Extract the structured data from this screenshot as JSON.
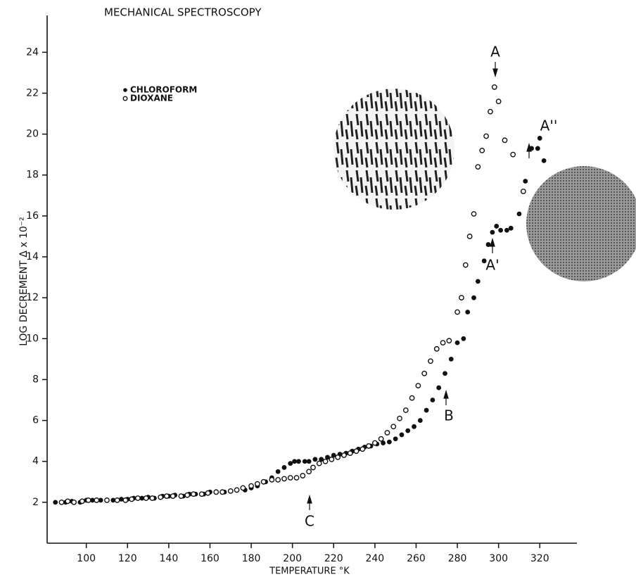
{
  "chart_data": {
    "type": "scatter",
    "title": "MECHANICAL SPECTROSCOPY",
    "xlabel": "TEMPERATURE °K",
    "ylabel": "LOG DECREMENT Δ x 10⁻²",
    "xlim": [
      81,
      338
    ],
    "ylim": [
      0,
      25.8
    ],
    "xticks": [
      100,
      120,
      140,
      160,
      180,
      200,
      220,
      240,
      260,
      280,
      300,
      320
    ],
    "yticks": [
      2,
      4,
      6,
      8,
      10,
      12,
      14,
      16,
      18,
      20,
      22,
      24
    ],
    "grid": false,
    "legend": "upper-left",
    "series": [
      {
        "name": "CHLOROFORM",
        "color": "#111111",
        "marker": "filled",
        "x": [
          85,
          90,
          93,
          97,
          100,
          103,
          107,
          110,
          113,
          117,
          120,
          123,
          127,
          130,
          133,
          137,
          140,
          143,
          147,
          150,
          153,
          157,
          160,
          163,
          167,
          170,
          173,
          177,
          180,
          183,
          187,
          190,
          193,
          196,
          199,
          201,
          203,
          206,
          208,
          211,
          214,
          217,
          220,
          223,
          226,
          229,
          232,
          235,
          238,
          241,
          244,
          247,
          250,
          253,
          256,
          259,
          262,
          265,
          268,
          271,
          274,
          277,
          280,
          283,
          285,
          288,
          290,
          293,
          295,
          297,
          299,
          301,
          304,
          306,
          310,
          313,
          316,
          319,
          320,
          322
        ],
        "values": [
          2.0,
          2.0,
          2.05,
          2.0,
          2.1,
          2.1,
          2.1,
          2.1,
          2.1,
          2.15,
          2.15,
          2.2,
          2.2,
          2.25,
          2.2,
          2.3,
          2.3,
          2.35,
          2.3,
          2.4,
          2.4,
          2.4,
          2.5,
          2.5,
          2.5,
          2.55,
          2.6,
          2.6,
          2.7,
          2.8,
          3.0,
          3.2,
          3.5,
          3.7,
          3.9,
          4.0,
          4.0,
          4.0,
          4.0,
          4.1,
          4.1,
          4.2,
          4.3,
          4.35,
          4.4,
          4.5,
          4.6,
          4.7,
          4.75,
          4.85,
          4.9,
          4.95,
          5.1,
          5.3,
          5.5,
          5.7,
          6.0,
          6.5,
          7.0,
          7.6,
          8.3,
          9.0,
          9.8,
          10.0,
          11.3,
          12.0,
          12.8,
          13.8,
          14.6,
          15.2,
          15.5,
          15.3,
          15.3,
          15.4,
          16.1,
          17.7,
          19.3,
          19.3,
          19.8,
          18.7
        ]
      },
      {
        "name": "DIOXANE",
        "color": "#111111",
        "marker": "open",
        "x": [
          88,
          91,
          94,
          98,
          101,
          105,
          110,
          115,
          119,
          122,
          125,
          129,
          132,
          136,
          139,
          142,
          146,
          149,
          152,
          156,
          159,
          163,
          166,
          170,
          173,
          176,
          180,
          183,
          186,
          190,
          193,
          196,
          199,
          202,
          205,
          208,
          210,
          213,
          216,
          219,
          222,
          225,
          228,
          231,
          234,
          237,
          240,
          243,
          246,
          249,
          252,
          255,
          258,
          261,
          264,
          267,
          270,
          273,
          276,
          280,
          282,
          284,
          286,
          288,
          290,
          292,
          294,
          296,
          298,
          300,
          303,
          307,
          312
        ],
        "values": [
          2.0,
          2.05,
          2.0,
          2.05,
          2.1,
          2.1,
          2.1,
          2.1,
          2.1,
          2.15,
          2.2,
          2.2,
          2.2,
          2.25,
          2.3,
          2.3,
          2.3,
          2.35,
          2.4,
          2.4,
          2.45,
          2.5,
          2.5,
          2.55,
          2.6,
          2.7,
          2.8,
          2.9,
          3.0,
          3.1,
          3.1,
          3.15,
          3.2,
          3.2,
          3.3,
          3.5,
          3.7,
          3.9,
          4.0,
          4.1,
          4.2,
          4.3,
          4.4,
          4.5,
          4.6,
          4.75,
          4.9,
          5.1,
          5.4,
          5.7,
          6.1,
          6.5,
          7.1,
          7.7,
          8.3,
          8.9,
          9.5,
          9.8,
          9.9,
          11.3,
          12.0,
          13.6,
          15.0,
          16.1,
          18.4,
          19.2,
          19.9,
          21.1,
          22.3,
          21.6,
          19.7,
          19.0,
          17.2
        ]
      }
    ],
    "annotations": [
      "A",
      "A'",
      "A''",
      "B",
      "C"
    ]
  }
}
